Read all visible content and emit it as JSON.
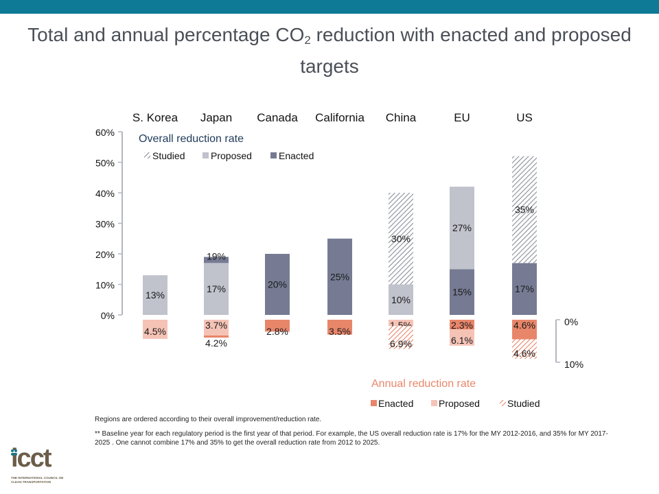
{
  "slide": {
    "title_pre": "Total and annual percentage CO",
    "title_sub": "2",
    "title_post": " reduction with enacted and proposed targets",
    "notes": [
      "Regions are ordered according to their overall improvement/reduction rate.",
      "** Baseline year for each regulatory period is the first year of that period. For example, the US overall  reduction rate is 17% for the MY 2012-2016, and 35% for MY 2017-2025 . One cannot combine 17% and 35% to get the overall reduction rate from 2012 to 2025."
    ],
    "logo_text": "icct",
    "logo_tagline": "THE INTERNATIONAL COUNCIL ON CLEAN TRANSPORTATION"
  },
  "colors": {
    "topbar": "#0e7a96",
    "overall_enacted": "#767b93",
    "overall_proposed": "#c0c2cc",
    "overall_studied": "#8a8d99",
    "annual_enacted": "#e8866a",
    "annual_proposed": "#f5c3b6",
    "annual_studied": "#e8866a",
    "annual_title": "#e8866a",
    "overall_title": "#1f3a5a"
  },
  "chart_data": {
    "type": "bar",
    "categories": [
      "S. Korea",
      "Japan",
      "Canada",
      "California",
      "China",
      "EU",
      "US"
    ],
    "overall": {
      "title": "Overall reduction rate",
      "ylim": [
        0,
        60
      ],
      "ticks": [
        "0%",
        "10%",
        "20%",
        "30%",
        "40%",
        "50%",
        "60%"
      ],
      "legend": [
        "Studied",
        "Proposed",
        "Enacted"
      ],
      "bars": [
        [
          {
            "kind": "proposed",
            "value": 13,
            "label": "13%"
          }
        ],
        [
          {
            "kind": "proposed",
            "value": 17,
            "label": "17%"
          },
          {
            "kind": "enacted",
            "value": 2,
            "label": "19%"
          }
        ],
        [
          {
            "kind": "enacted",
            "value": 20,
            "label": "20%"
          }
        ],
        [
          {
            "kind": "enacted",
            "value": 25,
            "label": "25%"
          }
        ],
        [
          {
            "kind": "proposed",
            "value": 10,
            "label": "10%"
          },
          {
            "kind": "studied",
            "value": 30,
            "label": "30%"
          }
        ],
        [
          {
            "kind": "enacted",
            "value": 15,
            "label": "15%"
          },
          {
            "kind": "proposed",
            "value": 27,
            "label": "27%"
          }
        ],
        [
          {
            "kind": "enacted",
            "value": 17,
            "label": "17%"
          },
          {
            "kind": "studied",
            "value": 35,
            "label": "35%"
          }
        ]
      ]
    },
    "annual": {
      "title": "Annual reduction rate",
      "ylim": [
        0,
        10
      ],
      "ticks": [
        "0%",
        "10%"
      ],
      "legend": [
        "Enacted",
        "Proposed",
        "Studied"
      ],
      "bars": [
        [
          {
            "kind": "proposed",
            "value": 4.5,
            "label": "4.5%"
          }
        ],
        [
          {
            "kind": "proposed",
            "value": 3.7,
            "label": "3.7%"
          },
          {
            "kind": "enacted",
            "value": 0.5,
            "label": "4.2%"
          }
        ],
        [
          {
            "kind": "enacted",
            "value": 2.8,
            "label": "2.8%"
          }
        ],
        [
          {
            "kind": "enacted",
            "value": 3.5,
            "label": "3.5%"
          }
        ],
        [
          {
            "kind": "proposed",
            "value": 1.5,
            "label": "1.5%"
          },
          {
            "kind": "studied",
            "value": 5.4,
            "label": "6.9%"
          }
        ],
        [
          {
            "kind": "enacted",
            "value": 2.3,
            "label": "2.3%"
          },
          {
            "kind": "proposed",
            "value": 3.8,
            "label": "6.1%"
          }
        ],
        [
          {
            "kind": "enacted",
            "value": 4.6,
            "label": "4.6%"
          },
          {
            "kind": "studied",
            "value": 4.6,
            "label": "4.6%"
          }
        ]
      ]
    }
  }
}
